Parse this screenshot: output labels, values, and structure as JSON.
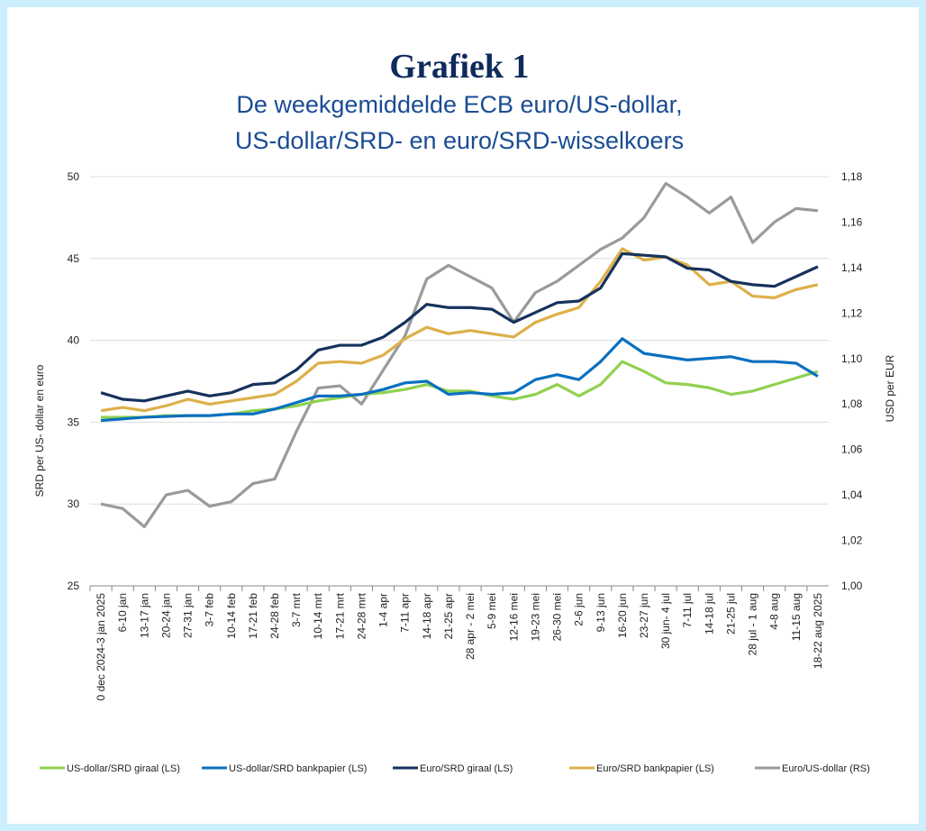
{
  "chart_data": {
    "type": "line",
    "title": "Grafiek 1",
    "subtitle": [
      "De weekgemiddelde ECB euro/US-dollar,",
      "US-dollar/SRD- en euro/SRD-wisselkoers"
    ],
    "ylabel": "SRD per US- dollar en euro",
    "y2label": "USD per EUR",
    "categories": [
      "0 dec 2024-3 jan 2025",
      "6-10 jan",
      "13-17 jan",
      "20-24 jan",
      "27-31 jan",
      "3-7 feb",
      "10-14 feb",
      "17-21 feb",
      "24-28 feb",
      "3-7 mrt",
      "10-14 mrt",
      "17-21 mrt",
      "24-28 mrt",
      "1-4 apr",
      "7-11 apr",
      "14-18 apr",
      "21-25 apr",
      "28 apr - 2 mei",
      "5-9 mei",
      "12-16 mei",
      "19-23 mei",
      "26-30 mei",
      "2-6 jun",
      "9-13 jun",
      "16-20 jun",
      "23-27 jun",
      "30 jun- 4 jul",
      "7-11 jul",
      "14-18 jul",
      "21-25 jul",
      "28 jul - 1 aug",
      "4-8 aug",
      "11-15 aug",
      "18-22 aug 2025"
    ],
    "ylim": [
      25,
      50
    ],
    "yticks": [
      25,
      30,
      35,
      40,
      45,
      50
    ],
    "y2lim": [
      1.0,
      1.18
    ],
    "y2ticks": [
      {
        "value": 1.0,
        "label": "1,00"
      },
      {
        "value": 1.02,
        "label": "1,02"
      },
      {
        "value": 1.04,
        "label": "1,04"
      },
      {
        "value": 1.06,
        "label": "1,06"
      },
      {
        "value": 1.08,
        "label": "1,08"
      },
      {
        "value": 1.1,
        "label": "1,10"
      },
      {
        "value": 1.12,
        "label": "1,12"
      },
      {
        "value": 1.14,
        "label": "1,14"
      },
      {
        "value": 1.16,
        "label": "1,16"
      },
      {
        "value": 1.18,
        "label": "1,18"
      }
    ],
    "grid": true,
    "legend": "bottom",
    "series": [
      {
        "name": "US-dollar/SRD giraal (LS)",
        "color": "#8fd14f",
        "values": [
          35.3,
          35.3,
          35.3,
          35.4,
          35.4,
          35.4,
          35.5,
          35.7,
          35.8,
          36.0,
          36.3,
          36.5,
          36.7,
          36.8,
          37.0,
          37.3,
          36.9,
          36.9,
          36.6,
          36.4,
          36.7,
          37.3,
          36.6,
          37.3,
          38.7,
          38.1,
          37.4,
          37.3,
          37.1,
          36.7,
          36.9,
          37.3,
          37.7,
          38.1
        ]
      },
      {
        "name": "US-dollar/SRD bankpapier (LS)",
        "color": "#0a70c0",
        "values": [
          35.1,
          35.2,
          35.3,
          35.35,
          35.4,
          35.4,
          35.5,
          35.5,
          35.8,
          36.2,
          36.6,
          36.6,
          36.7,
          37.0,
          37.4,
          37.5,
          36.7,
          36.8,
          36.7,
          36.8,
          37.6,
          37.9,
          37.6,
          38.7,
          40.1,
          39.2,
          39.0,
          38.8,
          38.9,
          39.0,
          38.7,
          38.7,
          38.6,
          37.8
        ]
      },
      {
        "name": "Euro/SRD giraal (LS)",
        "color": "#16325c",
        "values": [
          36.8,
          36.4,
          36.3,
          36.6,
          36.9,
          36.6,
          36.8,
          37.3,
          37.4,
          38.2,
          39.4,
          39.7,
          39.7,
          40.2,
          41.1,
          42.2,
          42.0,
          42.0,
          41.9,
          41.1,
          41.7,
          42.3,
          42.4,
          43.2,
          45.3,
          45.2,
          45.1,
          44.4,
          44.3,
          43.6,
          43.4,
          43.3,
          43.9,
          44.5
        ]
      },
      {
        "name": "Euro/SRD bankpapier (LS)",
        "color": "#ddb04a",
        "values": [
          35.7,
          35.9,
          35.7,
          36.0,
          36.4,
          36.1,
          36.3,
          36.5,
          36.7,
          37.5,
          38.6,
          38.7,
          38.6,
          39.1,
          40.1,
          40.8,
          40.4,
          40.6,
          40.4,
          40.2,
          41.1,
          41.6,
          42.0,
          43.6,
          45.6,
          44.9,
          45.1,
          44.6,
          43.4,
          43.6,
          42.7,
          42.6,
          43.1,
          43.4
        ]
      },
      {
        "name": "Euro/US-dollar (RS)",
        "color": "#9a9a9a",
        "axis": "y2",
        "values": [
          1.036,
          1.034,
          1.026,
          1.04,
          1.042,
          1.035,
          1.037,
          1.045,
          1.047,
          1.068,
          1.087,
          1.088,
          1.08,
          1.095,
          1.11,
          1.135,
          1.141,
          1.136,
          1.131,
          1.116,
          1.129,
          1.134,
          1.141,
          1.148,
          1.153,
          1.162,
          1.177,
          1.171,
          1.164,
          1.171,
          1.151,
          1.16,
          1.166,
          1.165
        ]
      }
    ]
  }
}
